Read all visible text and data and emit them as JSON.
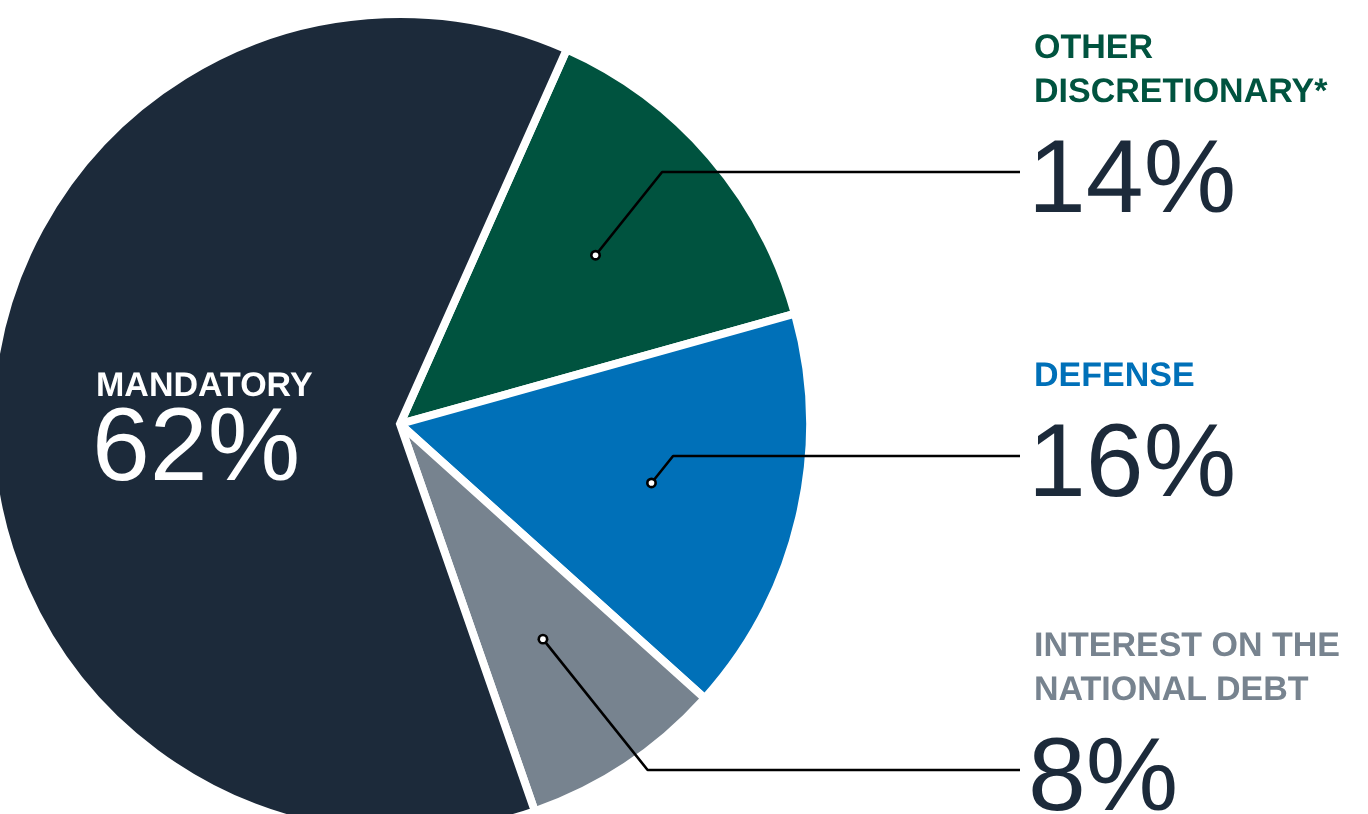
{
  "chart_data": {
    "type": "pie",
    "categories": [
      "OTHER DISCRETIONARY*",
      "DEFENSE",
      "INTEREST ON THE NATIONAL DEBT",
      "MANDATORY"
    ],
    "values": [
      14,
      16,
      8,
      62
    ],
    "colors": [
      "#00533f",
      "#0070b8",
      "#77838f",
      "#1c2a3a"
    ],
    "value_labels": [
      "14%",
      "16%",
      "8%",
      "62%"
    ]
  }
}
